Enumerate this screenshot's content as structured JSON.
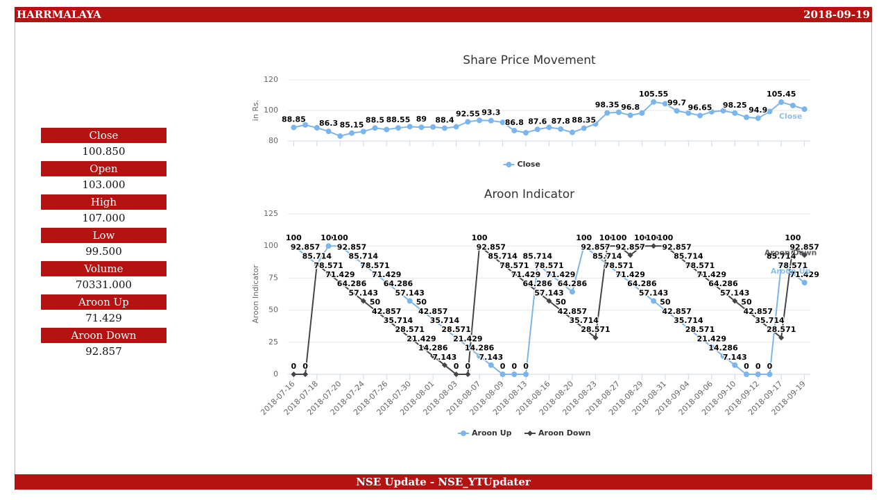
{
  "header": {
    "title": "HARRMALAYA",
    "date": "2018-09-19"
  },
  "stats": [
    {
      "label": "Close",
      "value": "100.850"
    },
    {
      "label": "Open",
      "value": "103.000"
    },
    {
      "label": "High",
      "value": "107.000"
    },
    {
      "label": "Low",
      "value": "99.500"
    },
    {
      "label": "Volume",
      "value": "70331.000"
    },
    {
      "label": "Aroon Up",
      "value": "71.429"
    },
    {
      "label": "Aroon Down",
      "value": "92.857"
    }
  ],
  "footer": "NSE Update - NSE_YTUpdater",
  "chart_data": [
    {
      "type": "line",
      "title": "Share Price Movement",
      "y_label": "in Rs.",
      "ylim": [
        80,
        120
      ],
      "yticks": [
        80,
        100,
        120
      ],
      "grid": true,
      "legend": "bottom",
      "series": [
        {
          "name": "Close",
          "color": "#7cb5ec",
          "marker": "circle",
          "values": [
            88.85,
            90.5,
            88.6,
            86.3,
            83.2,
            85.15,
            86.2,
            88.5,
            87.5,
            88.55,
            89.4,
            89,
            89.2,
            88.4,
            89.3,
            92.55,
            93.5,
            93.3,
            92.2,
            86.8,
            85.4,
            87.6,
            88.9,
            87.8,
            85.6,
            88.35,
            91.2,
            98.35,
            98.8,
            96.8,
            98.3,
            105.55,
            104.4,
            99.7,
            98.3,
            96.65,
            99.1,
            99.8,
            98.25,
            95.5,
            94.9,
            99.3,
            105.45,
            103.2,
            100.85
          ],
          "value_labels": [
            "88.85",
            null,
            null,
            "86.3",
            null,
            "85.15",
            null,
            "88.5",
            null,
            "88.55",
            null,
            "89",
            null,
            "88.4",
            null,
            "92.55",
            null,
            "93.3",
            null,
            "86.8",
            null,
            "87.6",
            null,
            "87.8",
            null,
            "88.35",
            null,
            "98.35",
            null,
            "96.8",
            null,
            "105.55",
            null,
            "99.7",
            null,
            "96.65",
            null,
            null,
            "98.25",
            null,
            "94.9",
            null,
            "105.45",
            null,
            null
          ]
        }
      ]
    },
    {
      "type": "line",
      "title": "Aroon Indicator",
      "y_label": "Aroon Indicator",
      "ylim": [
        0,
        125
      ],
      "yticks": [
        0,
        25,
        50,
        75,
        100,
        125
      ],
      "grid": true,
      "legend": "bottom",
      "categories": [
        "2018-07-16",
        null,
        "2018-07-18",
        null,
        "2018-07-20",
        null,
        "2018-07-24",
        null,
        "2018-07-26",
        null,
        "2018-07-30",
        null,
        "2018-08-01",
        null,
        "2018-08-03",
        null,
        "2018-08-07",
        null,
        "2018-08-09",
        null,
        "2018-08-13",
        null,
        "2018-08-16",
        null,
        "2018-08-20",
        null,
        "2018-08-23",
        null,
        "2018-08-27",
        null,
        "2018-08-29",
        null,
        "2018-08-31",
        null,
        "2018-09-04",
        null,
        "2018-09-06",
        null,
        "2018-09-10",
        null,
        "2018-09-12",
        null,
        "2018-09-17",
        null,
        "2018-09-19"
      ],
      "series": [
        {
          "name": "Aroon Up",
          "color": "#7cb5ec",
          "marker": "circle",
          "values": [
            100,
            92.857,
            85.714,
            100,
            100,
            92.857,
            85.714,
            78.571,
            71.429,
            64.286,
            57.143,
            50,
            42.857,
            35.714,
            28.571,
            21.429,
            14.286,
            7.143,
            0,
            0,
            0,
            85.714,
            78.571,
            71.429,
            64.286,
            100,
            92.857,
            85.714,
            78.571,
            71.429,
            64.286,
            57.143,
            50,
            42.857,
            35.714,
            28.571,
            21.429,
            14.286,
            7.143,
            0,
            0,
            0,
            85.714,
            78.571,
            71.429
          ]
        },
        {
          "name": "Aroon Down",
          "color": "#434348",
          "marker": "diamond",
          "values": [
            0,
            0,
            85.714,
            78.571,
            71.429,
            64.286,
            57.143,
            50,
            42.857,
            35.714,
            28.571,
            21.429,
            14.286,
            7.143,
            0,
            0,
            100,
            92.857,
            85.714,
            78.571,
            71.429,
            64.286,
            57.143,
            50,
            42.857,
            35.714,
            28.571,
            100,
            100,
            92.857,
            100,
            100,
            100,
            92.857,
            85.714,
            78.571,
            71.429,
            64.286,
            57.143,
            50,
            42.857,
            35.714,
            28.571,
            100,
            92.857
          ]
        }
      ]
    }
  ]
}
